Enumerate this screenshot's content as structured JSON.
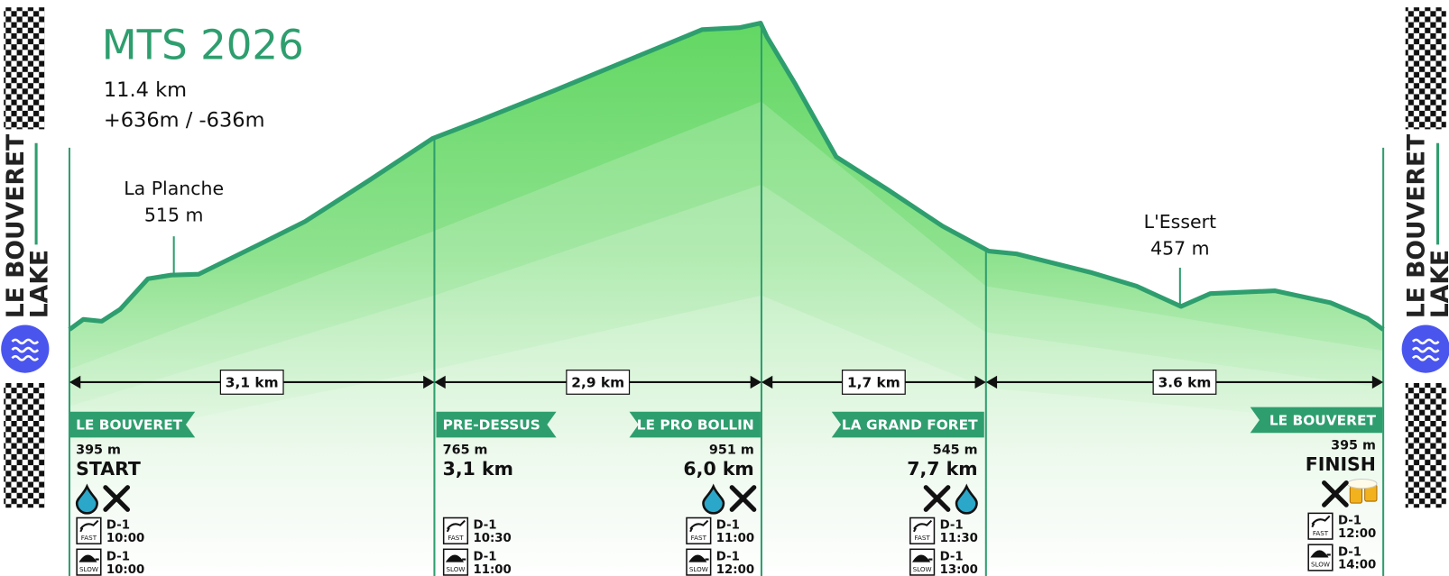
{
  "title": "MTS 2026",
  "distance": "11.4 km",
  "elevation_gain": "+636m / -636m",
  "side_label": {
    "line1": "LE BOUVERET",
    "line2": "LAKE"
  },
  "peaks": [
    {
      "name": "La Planche",
      "elevation": "515 m"
    },
    {
      "name": "L'Essert",
      "elevation": "457 m"
    }
  ],
  "segments": [
    "3,1 km",
    "2,9 km",
    "1,7 km",
    "3.6 km"
  ],
  "fast_label": "FAST",
  "slow_label": "SLOW",
  "checkpoints": [
    {
      "name": "LE BOUVERET",
      "elevation": "395 m",
      "label": "START",
      "fast": {
        "day": "D-1",
        "time": "10:00"
      },
      "slow": {
        "day": "D-1",
        "time": "10:00"
      }
    },
    {
      "name": "PRE-DESSUS",
      "elevation": "765 m",
      "label": "3,1 km",
      "fast": {
        "day": "D-1",
        "time": "10:30"
      },
      "slow": {
        "day": "D-1",
        "time": "11:00"
      }
    },
    {
      "name": "LE PRO BOLLIN",
      "elevation": "951 m",
      "label": "6,0 km",
      "fast": {
        "day": "D-1",
        "time": "11:00"
      },
      "slow": {
        "day": "D-1",
        "time": "12:00"
      }
    },
    {
      "name": "LA GRAND FORET",
      "elevation": "545 m",
      "label": "7,7 km",
      "fast": {
        "day": "D-1",
        "time": "11:30"
      },
      "slow": {
        "day": "D-1",
        "time": "13:00"
      }
    },
    {
      "name": "LE BOUVERET",
      "elevation": "395 m",
      "label": "FINISH",
      "fast": {
        "day": "D-1",
        "time": "12:00"
      },
      "slow": {
        "day": "D-1",
        "time": "14:00"
      }
    }
  ]
}
